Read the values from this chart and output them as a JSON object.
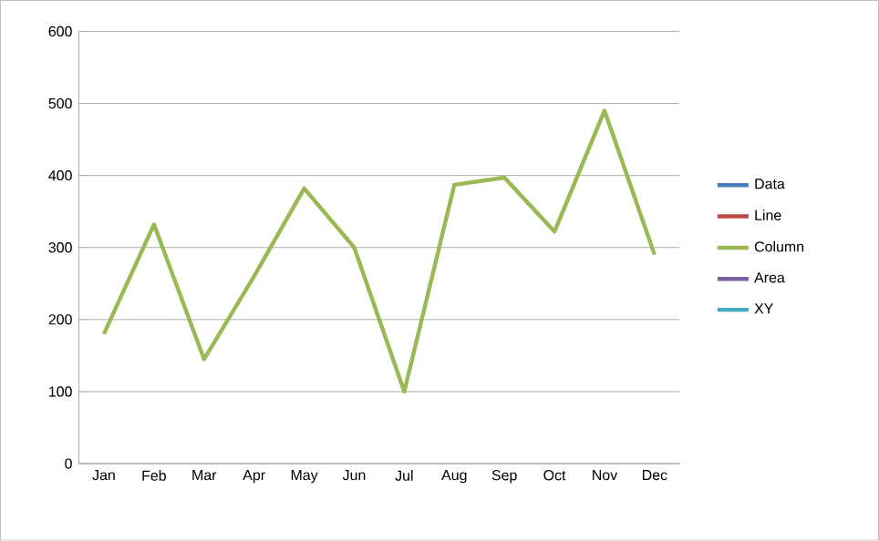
{
  "chart_data": {
    "type": "line",
    "categories": [
      "Jan",
      "Feb",
      "Mar",
      "Apr",
      "May",
      "Jun",
      "Jul",
      "Aug",
      "Sep",
      "Oct",
      "Nov",
      "Dec"
    ],
    "series": [
      {
        "name": "Data",
        "color": "#4a7ebb",
        "values": [
          null,
          null,
          null,
          null,
          null,
          null,
          null,
          null,
          null,
          null,
          null,
          null
        ]
      },
      {
        "name": "Line",
        "color": "#be4b48",
        "values": [
          null,
          null,
          null,
          null,
          null,
          null,
          null,
          null,
          null,
          null,
          null,
          null
        ]
      },
      {
        "name": "Column",
        "color": "#98b954",
        "values": [
          180,
          332,
          145,
          260,
          382,
          300,
          100,
          387,
          397,
          322,
          490,
          290
        ]
      },
      {
        "name": "Area",
        "color": "#7d60a0",
        "values": [
          null,
          null,
          null,
          null,
          null,
          null,
          null,
          null,
          null,
          null,
          null,
          null
        ]
      },
      {
        "name": "XY",
        "color": "#46aac5",
        "values": [
          null,
          null,
          null,
          null,
          null,
          null,
          null,
          null,
          null,
          null,
          null,
          null
        ]
      }
    ],
    "ylim": [
      0,
      600
    ],
    "yticks": [
      0,
      100,
      200,
      300,
      400,
      500,
      600
    ],
    "grid": "y",
    "legend": "right",
    "marker": "none",
    "line_style": "solid"
  }
}
